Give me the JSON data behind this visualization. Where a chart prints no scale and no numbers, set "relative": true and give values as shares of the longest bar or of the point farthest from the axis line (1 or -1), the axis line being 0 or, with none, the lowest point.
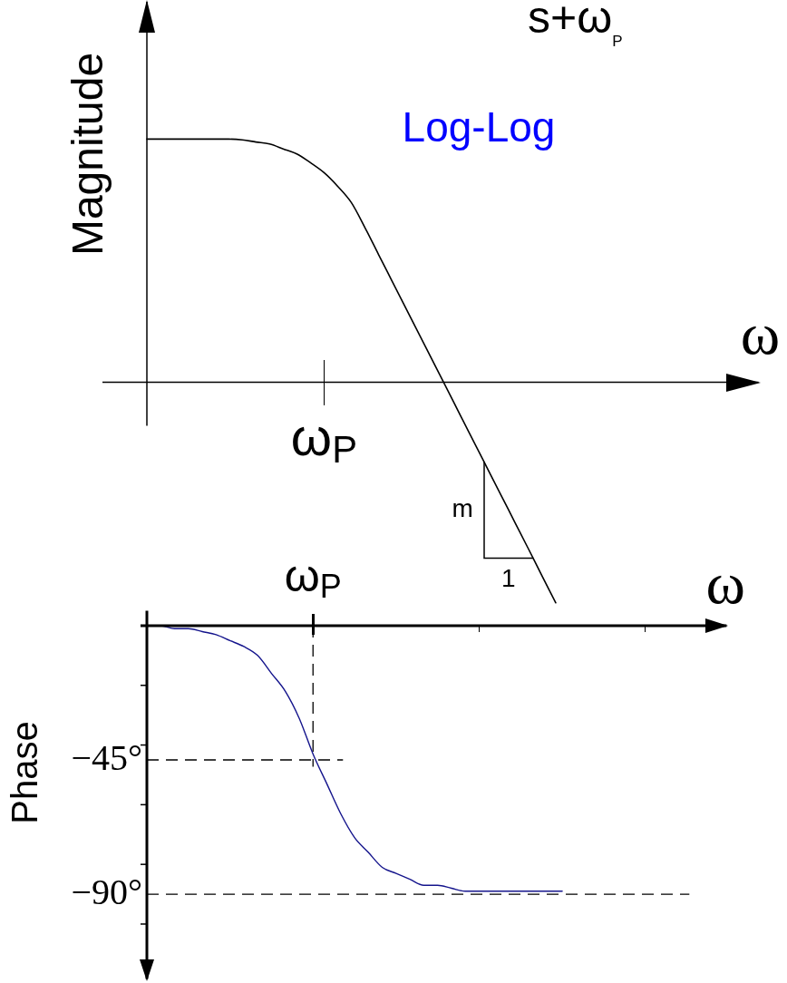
{
  "chart_data": [
    {
      "type": "line",
      "title": "s+ω$_{P}$",
      "xlabel": "ω",
      "ylabel": "Magnitude",
      "annotations": [
        "Log-Log",
        "ω$_{P}$",
        "m",
        "1"
      ],
      "relative": true,
      "categories": [
        null,
        null,
        null,
        null,
        null,
        null,
        null,
        null,
        null,
        null,
        null,
        null,
        null,
        null,
        null,
        null,
        null,
        null,
        null,
        null,
        null,
        null,
        null,
        null,
        null,
        null,
        null,
        null,
        null,
        null,
        null,
        null,
        null,
        null,
        null,
        null,
        null,
        null,
        null,
        null,
        null,
        null,
        null,
        null,
        null,
        null
      ],
      "values": [
        1,
        1,
        1,
        1,
        1,
        1,
        1,
        0.997,
        0.988,
        0.98,
        0.96,
        0.939,
        0.903,
        0.862,
        0.806,
        0.739,
        0.636,
        0.525,
        0.415,
        0.305,
        0.195,
        0.085,
        -0.025,
        -0.136,
        -0.246,
        -0.356,
        -0.466,
        -0.576,
        -0.686,
        -0.797,
        -0.907,
        null,
        null,
        null,
        null,
        null,
        null,
        null,
        null,
        null,
        null,
        null,
        null,
        null,
        null,
        null
      ],
      "color": "#000000"
    },
    {
      "type": "line",
      "xlabel": "ω",
      "ylabel": "Phase",
      "categories": [
        null,
        null,
        null,
        null,
        null,
        null,
        null,
        null,
        null,
        null,
        null,
        null,
        "ω$_{P}$",
        null,
        null,
        null,
        null,
        null,
        null,
        null,
        null,
        null,
        null,
        null,
        null,
        null,
        null,
        null,
        null,
        null,
        null,
        null,
        null,
        null,
        null,
        null,
        null,
        null,
        null,
        null,
        null,
        null,
        null
      ],
      "values": [
        0,
        0,
        -1,
        -1,
        -2,
        -3,
        -5,
        -7,
        -10,
        -16,
        -22,
        -31,
        -43,
        -53,
        -63,
        -71,
        -76,
        -81,
        -83,
        -85,
        -87,
        -87,
        -88,
        -89,
        -89,
        -89,
        -89,
        -89,
        -89,
        -89,
        -89,
        null,
        null,
        null,
        null,
        null,
        null,
        null,
        null,
        null,
        null,
        null,
        null
      ],
      "color": "#14148c",
      "ylim": [
        -119,
        5
      ],
      "yticks": [
        {
          "value": -20,
          "label": null
        },
        {
          "value": -40,
          "label": null
        },
        {
          "value": -45,
          "label": "−45°"
        },
        {
          "value": -60,
          "label": null
        },
        {
          "value": -80,
          "label": null
        },
        {
          "value": -90,
          "label": "−90°"
        },
        {
          "value": -100,
          "label": null
        }
      ],
      "ref_lines": [
        {
          "axis": "x",
          "value": "ω$_{P}$",
          "color": "#000000",
          "line_style": "dashed"
        },
        {
          "axis": "y",
          "value": -45,
          "color": "#000000",
          "line_style": "dashed"
        },
        {
          "axis": "y",
          "value": -90,
          "color": "#000000",
          "line_style": "dashed"
        }
      ]
    }
  ]
}
